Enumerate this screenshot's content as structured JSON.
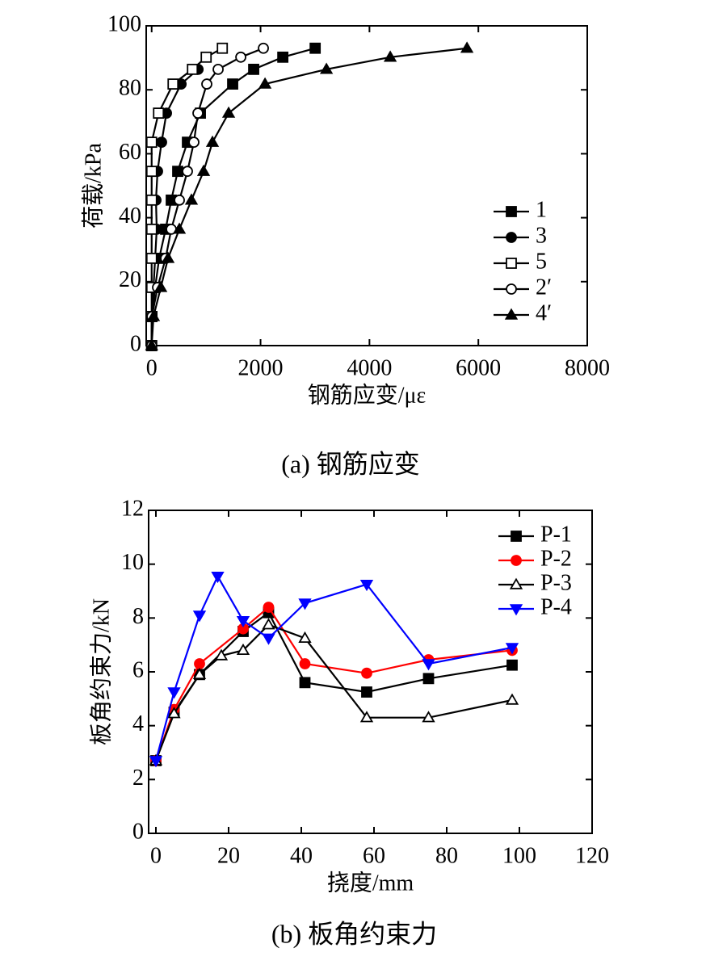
{
  "chart_data": [
    {
      "type": "line",
      "title": "(a)  钢筋应变",
      "x_label": "钢筋应变/με",
      "y_label": "荷载/kPa",
      "xlim": [
        -100,
        8000
      ],
      "xticks": [
        0,
        2000,
        4000,
        6000,
        8000
      ],
      "ylim": [
        0,
        100
      ],
      "yticks": [
        0,
        20,
        40,
        60,
        80,
        100
      ],
      "legend": "lower right",
      "series": [
        {
          "name": "1",
          "color": "#000000",
          "marker": "square",
          "filled": true,
          "x": [
            0,
            5,
            64,
            138,
            257,
            360,
            479,
            657,
            895,
            1488,
            1874,
            2409,
            3003
          ],
          "values": [
            0,
            9.1,
            18.2,
            27.3,
            36.4,
            45.5,
            54.5,
            63.6,
            72.7,
            81.8,
            86.4,
            90.2,
            93
          ]
        },
        {
          "name": "3",
          "color": "#000000",
          "marker": "circle",
          "filled": true,
          "x": [
            0,
            5,
            34,
            64,
            93,
            79,
            108,
            182,
            272,
            540,
            852
          ],
          "values": [
            0,
            9.1,
            18.2,
            27.3,
            36.4,
            45.5,
            54.5,
            63.6,
            72.7,
            81.8,
            86.4
          ]
        },
        {
          "name": "5",
          "color": "#000000",
          "marker": "square",
          "filled": false,
          "x": [
            0,
            0,
            0,
            0,
            0,
            0,
            0,
            0,
            126,
            393,
            749,
            1001,
            1298
          ],
          "values": [
            0,
            9.1,
            18.2,
            27.3,
            36.4,
            45.5,
            54.5,
            63.6,
            72.7,
            81.8,
            86.4,
            90.2,
            93
          ]
        },
        {
          "name": "2′",
          "color": "#000000",
          "marker": "circle",
          "filled": false,
          "x": [
            0,
            5,
            108,
            257,
            360,
            509,
            657,
            776,
            850,
            1013,
            1221,
            1637,
            2052
          ],
          "values": [
            0,
            9.1,
            18.2,
            27.3,
            36.4,
            45.5,
            54.5,
            63.6,
            72.7,
            81.8,
            86.4,
            90.2,
            93
          ]
        },
        {
          "name": "4′",
          "color": "#000000",
          "marker": "triangle-up",
          "filled": true,
          "x": [
            0,
            34,
            168,
            301,
            509,
            731,
            954,
            1117,
            1414,
            2082,
            3210,
            4382,
            5791
          ],
          "values": [
            0,
            9.1,
            18.2,
            27.3,
            36.4,
            45.5,
            54.5,
            63.6,
            72.7,
            81.8,
            86.4,
            90.2,
            93
          ]
        }
      ]
    },
    {
      "type": "line",
      "title": "(b)  板角约束力",
      "x_label": "挠度/mm",
      "y_label": "板角约束力/kN",
      "xlim": [
        -2,
        120
      ],
      "xticks": [
        0,
        20,
        40,
        60,
        80,
        100,
        120
      ],
      "ylim": [
        0,
        12
      ],
      "yticks": [
        0,
        2,
        4,
        6,
        8,
        10,
        12
      ],
      "legend": "upper right",
      "series": [
        {
          "name": "P-1",
          "color": "#000000",
          "marker": "square",
          "filled": true,
          "x": [
            0,
            5,
            12,
            24,
            31,
            41,
            58,
            75,
            98
          ],
          "values": [
            2.7,
            4.5,
            5.9,
            7.5,
            8.2,
            5.6,
            5.25,
            5.75,
            6.25
          ]
        },
        {
          "name": "P-2",
          "color": "#ff0000",
          "marker": "circle",
          "filled": true,
          "x": [
            0,
            5,
            12,
            24,
            31,
            41,
            58,
            75,
            98
          ],
          "values": [
            2.7,
            4.6,
            6.3,
            7.6,
            8.4,
            6.3,
            5.95,
            6.45,
            6.8
          ]
        },
        {
          "name": "P-3",
          "color": "#000000",
          "marker": "triangle-up",
          "filled": false,
          "x": [
            0,
            5,
            12,
            18,
            24,
            31,
            41,
            58,
            75,
            98
          ],
          "values": [
            2.7,
            4.45,
            5.9,
            6.6,
            6.8,
            7.75,
            7.25,
            4.3,
            4.3,
            4.95
          ]
        },
        {
          "name": "P-4",
          "color": "#0000ff",
          "marker": "triangle-down",
          "filled": true,
          "x": [
            0,
            5,
            12,
            17,
            24,
            31,
            41,
            58,
            75,
            98
          ],
          "values": [
            2.7,
            5.25,
            8.1,
            9.55,
            7.9,
            7.25,
            8.55,
            9.25,
            6.3,
            6.9
          ]
        }
      ]
    }
  ]
}
